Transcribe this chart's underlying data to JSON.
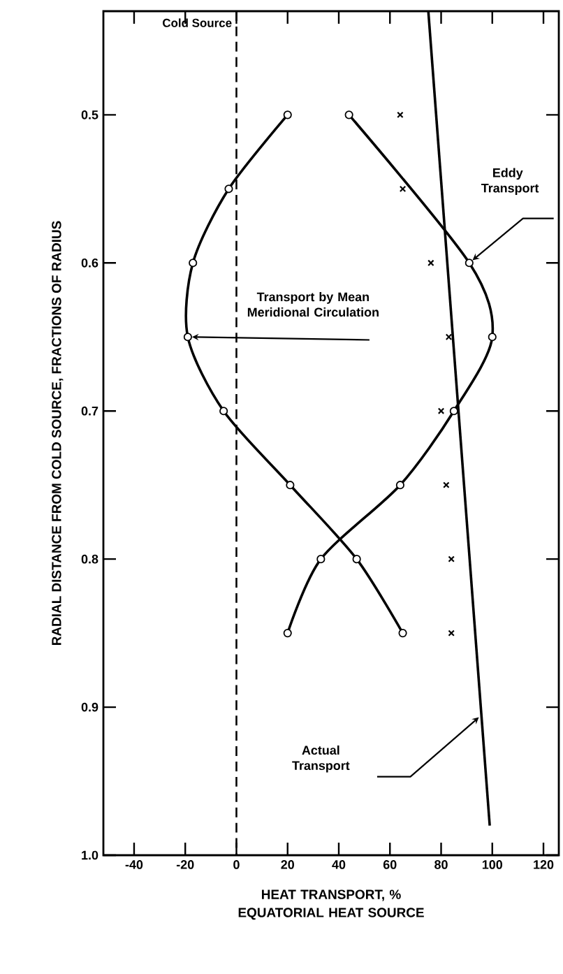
{
  "chart_data": {
    "type": "line",
    "xlabel": "HEAT TRANSPORT, % EQUATORIAL HEAT SOURCE",
    "ylabel": "RADIAL DISTANCE FROM COLD SOURCE, FRACTIONS OF RADIUS",
    "xlim": [
      -52,
      126
    ],
    "ylim": [
      1.0,
      0.43
    ],
    "xticks": [
      -40,
      -20,
      0,
      20,
      40,
      60,
      80,
      100,
      120
    ],
    "yticks": [
      0.5,
      0.6,
      0.7,
      0.8,
      0.9,
      {
        "value": 1.0,
        "label": "1.0"
      }
    ],
    "grid": false,
    "series": [
      {
        "color": "#000000",
        "marker": "circle",
        "line_style": "solid",
        "x": [
          20,
          -3,
          -17,
          -19,
          -5,
          21,
          47,
          65
        ],
        "values": [
          0.5,
          0.55,
          0.6,
          0.65,
          0.7,
          0.75,
          0.8,
          0.85
        ]
      },
      {
        "color": "#000000",
        "marker": "circle",
        "line_style": "solid",
        "x": [
          44,
          91,
          100,
          85,
          64,
          33,
          20
        ],
        "values": [
          0.5,
          0.6,
          0.65,
          0.7,
          0.75,
          0.8,
          0.85
        ]
      },
      {
        "type": "scatter",
        "color": "#000000",
        "marker": "cross",
        "x": [
          64,
          65,
          76,
          83,
          80,
          82,
          84,
          84
        ],
        "values": [
          0.5,
          0.55,
          0.6,
          0.65,
          0.7,
          0.75,
          0.8,
          0.85
        ]
      },
      {
        "color": "#000000",
        "marker": "none",
        "line_style": "solid",
        "x": [
          75,
          99
        ],
        "values": [
          0.43,
          0.98
        ]
      }
    ],
    "annotations": [
      "Transport by Mean Meridional Circulation",
      "Eddy Transport",
      "Actual Transport"
    ],
    "ref_lines": [
      {
        "axis": "x",
        "value": 0,
        "label": "Cold Source",
        "line_style": "dashed",
        "color": "#000000"
      }
    ]
  }
}
